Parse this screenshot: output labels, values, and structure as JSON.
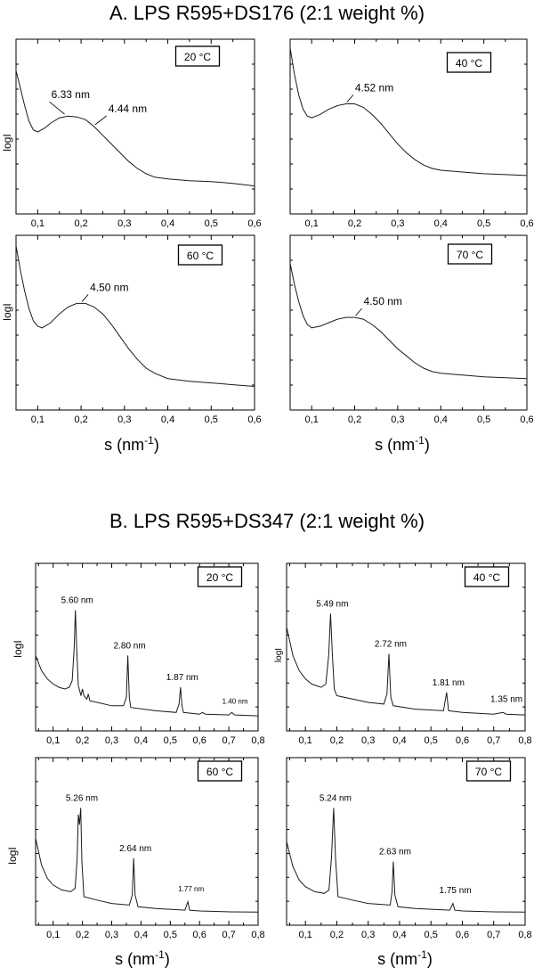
{
  "panel_a": {
    "title": "A. LPS R595+DS176 (2:1 weight %)",
    "xlabel": "s (nm",
    "xlabel_sup": "-1",
    "xlabel_end": ")",
    "ylabel": "logI"
  },
  "panel_b": {
    "title": "B. LPS R595+DS347 (2:1 weight %)",
    "xlabel": "s (nm",
    "xlabel_sup": "-1",
    "xlabel_end": ")",
    "ylabel": "logI"
  },
  "chart_data": [
    {
      "id": "a20",
      "group": "A",
      "type": "line",
      "temperature_label": "20 °C",
      "xlim": [
        0.05,
        0.6
      ],
      "xticks": [
        "0,1",
        "0,2",
        "0,3",
        "0,4",
        "0,5",
        "0,6"
      ],
      "xtick_values": [
        0.1,
        0.2,
        0.3,
        0.4,
        0.5,
        0.6
      ],
      "points": [
        [
          0.05,
          0.82
        ],
        [
          0.06,
          0.72
        ],
        [
          0.07,
          0.62
        ],
        [
          0.08,
          0.53
        ],
        [
          0.09,
          0.48
        ],
        [
          0.1,
          0.47
        ],
        [
          0.115,
          0.49
        ],
        [
          0.13,
          0.52
        ],
        [
          0.15,
          0.55
        ],
        [
          0.17,
          0.56
        ],
        [
          0.19,
          0.555
        ],
        [
          0.21,
          0.54
        ],
        [
          0.23,
          0.5
        ],
        [
          0.25,
          0.45
        ],
        [
          0.27,
          0.4
        ],
        [
          0.29,
          0.35
        ],
        [
          0.31,
          0.3
        ],
        [
          0.33,
          0.26
        ],
        [
          0.35,
          0.23
        ],
        [
          0.37,
          0.21
        ],
        [
          0.4,
          0.2
        ],
        [
          0.45,
          0.19
        ],
        [
          0.5,
          0.185
        ],
        [
          0.55,
          0.175
        ],
        [
          0.6,
          0.16
        ]
      ],
      "annotations": [
        {
          "text": "6.33 nm",
          "x": 0.16,
          "y": 0.56
        },
        {
          "text": "4.44 nm",
          "x": 0.23,
          "y": 0.5
        }
      ]
    },
    {
      "id": "a40",
      "group": "A",
      "type": "line",
      "temperature_label": "40 °C",
      "xlim": [
        0.05,
        0.6
      ],
      "xticks": [
        "0,1",
        "0,2",
        "0,3",
        "0,4",
        "0,5",
        "0,6"
      ],
      "xtick_values": [
        0.1,
        0.2,
        0.3,
        0.4,
        0.5,
        0.6
      ],
      "points": [
        [
          0.05,
          0.95
        ],
        [
          0.06,
          0.8
        ],
        [
          0.07,
          0.68
        ],
        [
          0.08,
          0.6
        ],
        [
          0.09,
          0.56
        ],
        [
          0.1,
          0.55
        ],
        [
          0.12,
          0.57
        ],
        [
          0.14,
          0.6
        ],
        [
          0.16,
          0.62
        ],
        [
          0.18,
          0.63
        ],
        [
          0.2,
          0.63
        ],
        [
          0.22,
          0.61
        ],
        [
          0.24,
          0.57
        ],
        [
          0.26,
          0.52
        ],
        [
          0.28,
          0.46
        ],
        [
          0.3,
          0.4
        ],
        [
          0.32,
          0.35
        ],
        [
          0.34,
          0.31
        ],
        [
          0.36,
          0.28
        ],
        [
          0.38,
          0.26
        ],
        [
          0.4,
          0.25
        ],
        [
          0.45,
          0.24
        ],
        [
          0.5,
          0.23
        ],
        [
          0.55,
          0.225
        ],
        [
          0.6,
          0.22
        ]
      ],
      "annotations": [
        {
          "text": "4.52 nm",
          "x": 0.18,
          "y": 0.63
        }
      ]
    },
    {
      "id": "a60",
      "group": "A",
      "type": "line",
      "temperature_label": "60 °C",
      "xlim": [
        0.05,
        0.6
      ],
      "xticks": [
        "0,1",
        "0,2",
        "0,3",
        "0,4",
        "0,5",
        "0,6"
      ],
      "xtick_values": [
        0.1,
        0.2,
        0.3,
        0.4,
        0.5,
        0.6
      ],
      "points": [
        [
          0.05,
          0.94
        ],
        [
          0.06,
          0.8
        ],
        [
          0.07,
          0.68
        ],
        [
          0.08,
          0.58
        ],
        [
          0.09,
          0.51
        ],
        [
          0.1,
          0.48
        ],
        [
          0.11,
          0.47
        ],
        [
          0.13,
          0.5
        ],
        [
          0.15,
          0.55
        ],
        [
          0.17,
          0.59
        ],
        [
          0.19,
          0.61
        ],
        [
          0.21,
          0.61
        ],
        [
          0.23,
          0.59
        ],
        [
          0.25,
          0.55
        ],
        [
          0.27,
          0.49
        ],
        [
          0.29,
          0.42
        ],
        [
          0.31,
          0.35
        ],
        [
          0.33,
          0.29
        ],
        [
          0.35,
          0.24
        ],
        [
          0.37,
          0.21
        ],
        [
          0.4,
          0.18
        ],
        [
          0.45,
          0.165
        ],
        [
          0.5,
          0.155
        ],
        [
          0.55,
          0.145
        ],
        [
          0.6,
          0.135
        ]
      ],
      "annotations": [
        {
          "text": "4.50 nm",
          "x": 0.2,
          "y": 0.61
        }
      ]
    },
    {
      "id": "a70",
      "group": "A",
      "type": "line",
      "temperature_label": "70 °C",
      "xlim": [
        0.05,
        0.6
      ],
      "xticks": [
        "0,1",
        "0,2",
        "0,3",
        "0,4",
        "0,5",
        "0,6"
      ],
      "xtick_values": [
        0.1,
        0.2,
        0.3,
        0.4,
        0.5,
        0.6
      ],
      "points": [
        [
          0.05,
          0.84
        ],
        [
          0.06,
          0.72
        ],
        [
          0.07,
          0.62
        ],
        [
          0.08,
          0.54
        ],
        [
          0.09,
          0.49
        ],
        [
          0.1,
          0.47
        ],
        [
          0.12,
          0.48
        ],
        [
          0.14,
          0.5
        ],
        [
          0.16,
          0.52
        ],
        [
          0.18,
          0.53
        ],
        [
          0.2,
          0.53
        ],
        [
          0.22,
          0.52
        ],
        [
          0.24,
          0.49
        ],
        [
          0.26,
          0.45
        ],
        [
          0.28,
          0.4
        ],
        [
          0.3,
          0.35
        ],
        [
          0.32,
          0.31
        ],
        [
          0.34,
          0.27
        ],
        [
          0.36,
          0.24
        ],
        [
          0.38,
          0.22
        ],
        [
          0.4,
          0.21
        ],
        [
          0.45,
          0.2
        ],
        [
          0.5,
          0.19
        ],
        [
          0.55,
          0.185
        ],
        [
          0.6,
          0.18
        ]
      ],
      "annotations": [
        {
          "text": "4.50 nm",
          "x": 0.2,
          "y": 0.53
        }
      ]
    },
    {
      "id": "b20",
      "group": "B",
      "type": "line",
      "temperature_label": "20 °C",
      "xlim": [
        0.04,
        0.8
      ],
      "xticks": [
        "0,1",
        "0,2",
        "0,3",
        "0,4",
        "0,5",
        "0,6",
        "0,7",
        "0,8"
      ],
      "xtick_values": [
        0.1,
        0.2,
        0.3,
        0.4,
        0.5,
        0.6,
        0.7,
        0.8
      ],
      "points": [
        [
          0.04,
          0.45
        ],
        [
          0.06,
          0.36
        ],
        [
          0.08,
          0.31
        ],
        [
          0.1,
          0.28
        ],
        [
          0.12,
          0.26
        ],
        [
          0.14,
          0.25
        ],
        [
          0.155,
          0.26
        ],
        [
          0.165,
          0.3
        ],
        [
          0.172,
          0.5
        ],
        [
          0.176,
          0.72
        ],
        [
          0.18,
          0.5
        ],
        [
          0.186,
          0.27
        ],
        [
          0.195,
          0.21
        ],
        [
          0.2,
          0.25
        ],
        [
          0.205,
          0.21
        ],
        [
          0.215,
          0.19
        ],
        [
          0.22,
          0.22
        ],
        [
          0.225,
          0.18
        ],
        [
          0.25,
          0.17
        ],
        [
          0.3,
          0.15
        ],
        [
          0.34,
          0.15
        ],
        [
          0.35,
          0.2
        ],
        [
          0.355,
          0.45
        ],
        [
          0.36,
          0.2
        ],
        [
          0.365,
          0.14
        ],
        [
          0.45,
          0.12
        ],
        [
          0.52,
          0.11
        ],
        [
          0.53,
          0.16
        ],
        [
          0.535,
          0.26
        ],
        [
          0.54,
          0.15
        ],
        [
          0.545,
          0.11
        ],
        [
          0.6,
          0.1
        ],
        [
          0.61,
          0.11
        ],
        [
          0.62,
          0.1
        ],
        [
          0.7,
          0.095
        ],
        [
          0.71,
          0.11
        ],
        [
          0.72,
          0.095
        ],
        [
          0.8,
          0.09
        ]
      ],
      "annotations": [
        {
          "text": "5.60 nm",
          "x": 0.176,
          "y": 0.72
        },
        {
          "text": "2.80 nm",
          "x": 0.355,
          "y": 0.45
        },
        {
          "text": "1.87 nm",
          "x": 0.535,
          "y": 0.26
        },
        {
          "text": "1.40 nm",
          "x": 0.715,
          "y": 0.12,
          "small": true
        }
      ]
    },
    {
      "id": "b40",
      "group": "B",
      "type": "line",
      "temperature_label": "40 °C",
      "xlim": [
        0.04,
        0.8
      ],
      "xticks": [
        "0,1",
        "0,2",
        "0,3",
        "0,4",
        "0,5",
        "0,6",
        "0,7",
        "0,8"
      ],
      "xtick_values": [
        0.1,
        0.2,
        0.3,
        0.4,
        0.5,
        0.6,
        0.7,
        0.8
      ],
      "points": [
        [
          0.04,
          0.62
        ],
        [
          0.06,
          0.45
        ],
        [
          0.08,
          0.36
        ],
        [
          0.1,
          0.31
        ],
        [
          0.12,
          0.28
        ],
        [
          0.15,
          0.26
        ],
        [
          0.165,
          0.28
        ],
        [
          0.174,
          0.45
        ],
        [
          0.18,
          0.7
        ],
        [
          0.186,
          0.45
        ],
        [
          0.192,
          0.25
        ],
        [
          0.2,
          0.21
        ],
        [
          0.25,
          0.19
        ],
        [
          0.3,
          0.17
        ],
        [
          0.35,
          0.16
        ],
        [
          0.36,
          0.22
        ],
        [
          0.366,
          0.46
        ],
        [
          0.372,
          0.2
        ],
        [
          0.38,
          0.15
        ],
        [
          0.45,
          0.13
        ],
        [
          0.54,
          0.12
        ],
        [
          0.55,
          0.23
        ],
        [
          0.556,
          0.12
        ],
        [
          0.6,
          0.11
        ],
        [
          0.7,
          0.1
        ],
        [
          0.73,
          0.11
        ],
        [
          0.74,
          0.1
        ],
        [
          0.8,
          0.095
        ]
      ],
      "annotations": [
        {
          "text": "5.49 nm",
          "x": 0.18,
          "y": 0.7
        },
        {
          "text": "2.72 nm",
          "x": 0.366,
          "y": 0.46
        },
        {
          "text": "1.81 nm",
          "x": 0.55,
          "y": 0.23
        },
        {
          "text": "1.35 nm",
          "x": 0.735,
          "y": 0.13
        }
      ]
    },
    {
      "id": "b60",
      "group": "B",
      "type": "line",
      "temperature_label": "60 °C",
      "xlim": [
        0.04,
        0.8
      ],
      "xticks": [
        "0,1",
        "0,2",
        "0,3",
        "0,4",
        "0,5",
        "0,6",
        "0,7",
        "0,8"
      ],
      "xtick_values": [
        0.1,
        0.2,
        0.3,
        0.4,
        0.5,
        0.6,
        0.7,
        0.8
      ],
      "points": [
        [
          0.04,
          0.52
        ],
        [
          0.06,
          0.36
        ],
        [
          0.08,
          0.28
        ],
        [
          0.1,
          0.24
        ],
        [
          0.13,
          0.21
        ],
        [
          0.16,
          0.2
        ],
        [
          0.175,
          0.22
        ],
        [
          0.182,
          0.4
        ],
        [
          0.186,
          0.66
        ],
        [
          0.19,
          0.6
        ],
        [
          0.194,
          0.7
        ],
        [
          0.198,
          0.38
        ],
        [
          0.205,
          0.17
        ],
        [
          0.25,
          0.15
        ],
        [
          0.3,
          0.13
        ],
        [
          0.36,
          0.12
        ],
        [
          0.37,
          0.18
        ],
        [
          0.375,
          0.4
        ],
        [
          0.38,
          0.18
        ],
        [
          0.39,
          0.11
        ],
        [
          0.45,
          0.1
        ],
        [
          0.55,
          0.09
        ],
        [
          0.56,
          0.14
        ],
        [
          0.566,
          0.09
        ],
        [
          0.6,
          0.085
        ],
        [
          0.7,
          0.08
        ],
        [
          0.8,
          0.078
        ]
      ],
      "annotations": [
        {
          "text": "5.26 nm",
          "x": 0.192,
          "y": 0.7
        },
        {
          "text": "2.64 nm",
          "x": 0.375,
          "y": 0.4
        },
        {
          "text": "1.77 nm",
          "x": 0.565,
          "y": 0.16,
          "small": true
        }
      ]
    },
    {
      "id": "b70",
      "group": "B",
      "type": "line",
      "temperature_label": "70 °C",
      "xlim": [
        0.04,
        0.8
      ],
      "xticks": [
        "0,1",
        "0,2",
        "0,3",
        "0,4",
        "0,5",
        "0,6",
        "0,7",
        "0,8"
      ],
      "xtick_values": [
        0.1,
        0.2,
        0.3,
        0.4,
        0.5,
        0.6,
        0.7,
        0.8
      ],
      "points": [
        [
          0.04,
          0.5
        ],
        [
          0.06,
          0.35
        ],
        [
          0.08,
          0.27
        ],
        [
          0.1,
          0.23
        ],
        [
          0.13,
          0.2
        ],
        [
          0.16,
          0.19
        ],
        [
          0.175,
          0.21
        ],
        [
          0.183,
          0.4
        ],
        [
          0.19,
          0.7
        ],
        [
          0.196,
          0.4
        ],
        [
          0.204,
          0.17
        ],
        [
          0.25,
          0.15
        ],
        [
          0.3,
          0.13
        ],
        [
          0.37,
          0.12
        ],
        [
          0.376,
          0.2
        ],
        [
          0.38,
          0.38
        ],
        [
          0.385,
          0.18
        ],
        [
          0.395,
          0.11
        ],
        [
          0.45,
          0.1
        ],
        [
          0.56,
          0.09
        ],
        [
          0.57,
          0.13
        ],
        [
          0.576,
          0.09
        ],
        [
          0.6,
          0.085
        ],
        [
          0.7,
          0.08
        ],
        [
          0.8,
          0.078
        ]
      ],
      "annotations": [
        {
          "text": "5.24 nm",
          "x": 0.19,
          "y": 0.7
        },
        {
          "text": "2.63 nm",
          "x": 0.38,
          "y": 0.38
        },
        {
          "text": "1.75 nm",
          "x": 0.572,
          "y": 0.15
        }
      ]
    }
  ]
}
